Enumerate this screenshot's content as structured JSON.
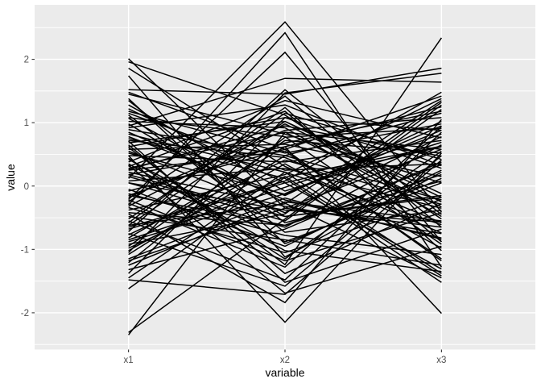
{
  "chart_data": {
    "type": "line",
    "subtype": "parallel-coordinates",
    "title": "",
    "xlabel": "variable",
    "ylabel": "value",
    "categories": [
      "x1",
      "x2",
      "x3"
    ],
    "yticks": [
      -2,
      -1,
      0,
      1,
      2
    ],
    "ytick_labels": [
      "-2",
      "-1",
      "0",
      "1",
      "2"
    ],
    "yticks_minor": [
      -2.5,
      -1.5,
      -0.5,
      0.5,
      1.5,
      2.5
    ],
    "ylim": [
      -2.58,
      2.86
    ],
    "grid": "white major+minor horizontal, white major vertical at categories",
    "legend": "none",
    "colors": {
      "panel_bg": "#EBEBEB",
      "grid": "#FFFFFF",
      "line": "#000000",
      "tick_mark": "#333333",
      "axis_text": "#4D4D4D",
      "axis_title": "#000000",
      "background": "#FFFFFF"
    },
    "lines": [
      [
        0.12,
        2.59,
        -0.41
      ],
      [
        -0.3,
        2.42,
        -1.28
      ],
      [
        -0.21,
        2.11,
        -0.88
      ],
      [
        0.48,
        -2.15,
        0.52
      ],
      [
        -2.35,
        0.85,
        -0.33
      ],
      [
        0.61,
        -1.24,
        2.34
      ],
      [
        2.01,
        -0.35,
        0.58
      ],
      [
        1.86,
        0.31,
        -0.74
      ],
      [
        1.74,
        -1.12,
        0.22
      ],
      [
        0.18,
        0.62,
        -2.01
      ],
      [
        0.95,
        1.7,
        1.64
      ],
      [
        -2.31,
        -0.52,
        1.28
      ],
      [
        -0.44,
        -1.84,
        1.05
      ],
      [
        1.52,
        1.45,
        1.86
      ],
      [
        -1.05,
        1.47,
        1.78
      ],
      [
        0.33,
        -1.69,
        -0.95
      ],
      [
        -1.48,
        -1.71,
        0.41
      ],
      [
        1.96,
        1.12,
        -0.52
      ],
      [
        0.52,
        -0.13,
        0.88
      ],
      [
        -0.77,
        0.41,
        -0.29
      ],
      [
        1.22,
        0.05,
        -1.31
      ],
      [
        -0.15,
        -0.62,
        0.34
      ],
      [
        0.68,
        1.02,
        -0.18
      ],
      [
        -1.21,
        0.77,
        0.91
      ],
      [
        0.05,
        -0.38,
        -0.57
      ],
      [
        1.38,
        -0.91,
        0.12
      ],
      [
        -0.58,
        1.24,
        -1.02
      ],
      [
        0.89,
        0.48,
        1.15
      ],
      [
        -0.34,
        -1.05,
        -0.21
      ],
      [
        1.07,
        -0.27,
        -1.45
      ],
      [
        -1.62,
        0.14,
        0.63
      ],
      [
        0.26,
        0.95,
        0.47
      ],
      [
        -0.92,
        -0.44,
        1.32
      ],
      [
        0.71,
        -1.52,
        -0.68
      ],
      [
        -0.08,
        0.58,
        -1.18
      ],
      [
        1.45,
        0.82,
        0.05
      ],
      [
        -1.15,
        -0.19,
        -0.84
      ],
      [
        0.38,
        1.35,
        0.76
      ],
      [
        -0.65,
        0.08,
        1.48
      ],
      [
        1.12,
        -0.73,
        -0.38
      ],
      [
        -0.27,
        -1.28,
        0.94
      ],
      [
        0.82,
        0.22,
        -0.61
      ],
      [
        -1.38,
        1.08,
        0.28
      ],
      [
        0.15,
        -0.55,
        1.21
      ],
      [
        -0.72,
        1.52,
        -0.45
      ],
      [
        1.28,
        -0.08,
        0.69
      ],
      [
        -0.48,
        -0.85,
        -1.25
      ],
      [
        0.58,
        0.66,
        0.15
      ],
      [
        -1.02,
        0.35,
        -0.98
      ],
      [
        0.44,
        -1.15,
        0.55
      ],
      [
        -0.18,
        0.88,
        1.08
      ],
      [
        0.98,
        -0.48,
        -0.15
      ],
      [
        -0.85,
        -0.02,
        0.82
      ],
      [
        0.31,
        1.18,
        -0.88
      ],
      [
        -1.32,
        -0.68,
        0.38
      ],
      [
        0.75,
        0.12,
        -1.52
      ],
      [
        -0.05,
        -0.95,
        0.25
      ],
      [
        1.18,
        0.52,
        0.98
      ],
      [
        -0.62,
        1.02,
        -0.12
      ],
      [
        0.22,
        -0.32,
        -0.75
      ],
      [
        -0.95,
        0.72,
        0.52
      ],
      [
        0.65,
        -1.38,
        -0.28
      ],
      [
        -0.38,
        0.18,
        1.38
      ],
      [
        1.02,
        0.92,
        -0.48
      ],
      [
        -0.12,
        -0.78,
        -1.08
      ],
      [
        0.48,
        0.38,
        0.72
      ],
      [
        -1.25,
        -0.25,
        -0.55
      ],
      [
        0.92,
        1.28,
        0.32
      ],
      [
        -0.55,
        -1.48,
        0.85
      ],
      [
        0.08,
        0.28,
        -0.35
      ],
      [
        -0.82,
        0.62,
        1.25
      ],
      [
        1.35,
        -0.58,
        0.08
      ],
      [
        -0.25,
        1.42,
        -0.65
      ],
      [
        0.78,
        -0.15,
        1.02
      ],
      [
        -1.08,
        0.48,
        -0.22
      ],
      [
        0.35,
        -1.02,
        -1.35
      ],
      [
        -0.68,
        0.05,
        0.62
      ],
      [
        1.08,
        0.78,
        -0.92
      ],
      [
        -0.42,
        -0.62,
        0.18
      ],
      [
        0.62,
        1.08,
        0.88
      ],
      [
        -1.18,
        -0.35,
        -0.65
      ],
      [
        0.25,
        0.55,
        -1.15
      ],
      [
        -0.75,
        -1.58,
        0.48
      ],
      [
        1.15,
        0.25,
        0.35
      ],
      [
        -0.32,
        0.98,
        -0.25
      ],
      [
        0.55,
        -0.42,
        0.78
      ],
      [
        -0.98,
        0.15,
        -1.42
      ],
      [
        0.42,
        -0.88,
        0.05
      ],
      [
        -0.15,
        0.68,
        1.18
      ],
      [
        0.85,
        -0.22,
        -0.82
      ],
      [
        -0.52,
        1.15,
        0.42
      ],
      [
        0.18,
        -0.48,
        -0.18
      ],
      [
        -0.88,
        -0.12,
        0.95
      ],
      [
        0.72,
        0.45,
        -0.58
      ],
      [
        -0.22,
        -1.18,
        -0.42
      ],
      [
        1.48,
        0.58,
        1.42
      ],
      [
        -0.62,
        -0.28,
        1.35
      ],
      [
        0.28,
        0.85,
        0.58
      ],
      [
        -1.45,
        0.22,
        -1.38
      ],
      [
        0.05,
        -0.65,
        0.65
      ]
    ]
  }
}
